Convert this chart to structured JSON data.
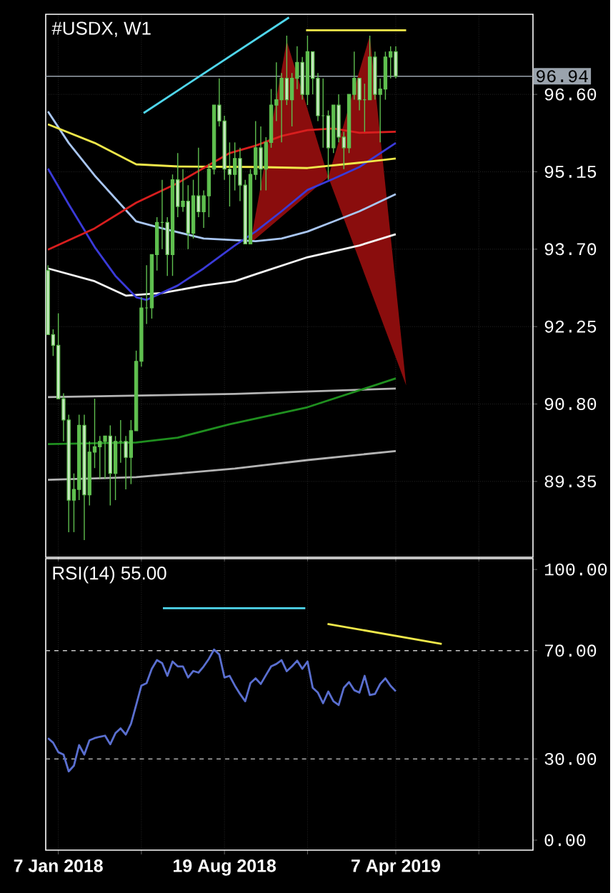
{
  "chart_data": [
    {
      "type": "candlestick",
      "title": "#USDX, W1",
      "color": "#5fbf4f",
      "x": [
        "2017-12-24",
        "2017-12-31",
        "2018-01-07",
        "2018-01-14",
        "2018-01-21",
        "2018-01-28",
        "2018-02-04",
        "2018-02-11",
        "2018-02-18",
        "2018-02-25",
        "2018-03-04",
        "2018-03-11",
        "2018-03-18",
        "2018-03-25",
        "2018-04-01",
        "2018-04-08",
        "2018-04-15",
        "2018-04-22",
        "2018-04-29",
        "2018-05-06",
        "2018-05-13",
        "2018-05-20",
        "2018-05-27",
        "2018-06-03",
        "2018-06-10",
        "2018-06-17",
        "2018-06-24",
        "2018-07-01",
        "2018-07-08",
        "2018-07-15",
        "2018-07-22",
        "2018-07-29",
        "2018-08-05",
        "2018-08-12",
        "2018-08-19",
        "2018-08-26",
        "2018-09-02",
        "2018-09-09",
        "2018-09-16",
        "2018-09-23",
        "2018-09-30",
        "2018-10-07",
        "2018-10-14",
        "2018-10-21",
        "2018-10-28",
        "2018-11-04",
        "2018-11-11",
        "2018-11-18",
        "2018-11-25",
        "2018-12-02",
        "2018-12-09",
        "2018-12-16",
        "2018-12-23",
        "2018-12-30",
        "2019-01-06",
        "2019-01-13",
        "2019-01-20",
        "2019-01-27",
        "2019-02-03",
        "2019-02-10",
        "2019-02-17",
        "2019-02-24",
        "2019-03-03",
        "2019-03-10",
        "2019-03-17",
        "2019-03-24",
        "2019-03-31",
        "2019-04-07"
      ],
      "ohlc": [
        [
          93.3,
          93.4,
          92.1,
          92.1
        ],
        [
          92.1,
          92.2,
          91.7,
          91.9
        ],
        [
          91.9,
          92.5,
          90.9,
          90.9
        ],
        [
          90.9,
          91.0,
          90.1,
          90.5
        ],
        [
          90.5,
          90.6,
          88.4,
          89.0
        ],
        [
          89.0,
          89.5,
          88.4,
          89.2
        ],
        [
          89.2,
          90.6,
          89.0,
          90.4
        ],
        [
          90.4,
          90.6,
          88.25,
          89.1
        ],
        [
          89.1,
          90.1,
          88.9,
          89.9
        ],
        [
          89.9,
          90.9,
          89.6,
          90.0
        ],
        [
          90.0,
          90.2,
          89.4,
          90.1
        ],
        [
          90.1,
          90.2,
          89.4,
          90.2
        ],
        [
          90.2,
          90.4,
          88.9,
          89.5
        ],
        [
          89.5,
          90.2,
          89.0,
          90.1
        ],
        [
          90.1,
          90.5,
          89.7,
          90.1
        ],
        [
          90.1,
          90.2,
          89.2,
          89.8
        ],
        [
          89.8,
          90.5,
          89.3,
          90.3
        ],
        [
          90.3,
          91.8,
          90.3,
          91.6
        ],
        [
          91.6,
          92.8,
          91.5,
          92.6
        ],
        [
          92.6,
          93.4,
          92.3,
          92.6
        ],
        [
          92.6,
          93.6,
          92.4,
          93.6
        ],
        [
          93.6,
          94.3,
          93.3,
          94.2
        ],
        [
          94.2,
          95.0,
          93.7,
          94.2
        ],
        [
          94.2,
          94.3,
          93.2,
          93.6
        ],
        [
          93.6,
          95.1,
          93.2,
          95.0
        ],
        [
          95.0,
          95.5,
          94.3,
          94.5
        ],
        [
          94.5,
          95.2,
          94.4,
          94.6
        ],
        [
          94.6,
          94.9,
          93.7,
          94.0
        ],
        [
          94.0,
          95.0,
          93.9,
          94.7
        ],
        [
          94.7,
          95.6,
          94.3,
          94.4
        ],
        [
          94.4,
          94.8,
          94.1,
          94.7
        ],
        [
          94.7,
          95.3,
          94.3,
          95.2
        ],
        [
          95.2,
          96.4,
          95.1,
          96.4
        ],
        [
          96.4,
          96.9,
          96.0,
          96.1
        ],
        [
          96.1,
          96.2,
          95.0,
          95.2
        ],
        [
          95.2,
          95.7,
          94.5,
          95.1
        ],
        [
          95.1,
          95.7,
          94.8,
          95.4
        ],
        [
          95.4,
          95.6,
          94.6,
          94.9
        ],
        [
          94.9,
          95.0,
          93.8,
          93.8
        ],
        [
          93.8,
          95.2,
          93.8,
          95.1
        ],
        [
          95.1,
          96.1,
          95.0,
          95.6
        ],
        [
          95.6,
          96.0,
          94.8,
          95.2
        ],
        [
          95.2,
          95.8,
          94.8,
          95.7
        ],
        [
          95.7,
          96.7,
          95.6,
          96.4
        ],
        [
          96.4,
          97.2,
          96.1,
          96.5
        ],
        [
          96.5,
          97.0,
          95.7,
          96.9
        ],
        [
          96.9,
          97.7,
          96.4,
          96.5
        ],
        [
          96.5,
          97.0,
          96.0,
          96.9
        ],
        [
          96.9,
          97.5,
          96.7,
          97.2
        ],
        [
          97.2,
          97.3,
          96.5,
          96.6
        ],
        [
          96.6,
          97.7,
          96.4,
          97.4
        ],
        [
          97.4,
          97.4,
          96.6,
          96.9
        ],
        [
          96.9,
          97.0,
          96.1,
          96.2
        ],
        [
          96.2,
          96.9,
          95.6,
          96.2
        ],
        [
          96.2,
          96.3,
          95.0,
          95.6
        ],
        [
          95.6,
          96.4,
          95.5,
          96.4
        ],
        [
          96.4,
          96.6,
          95.7,
          95.8
        ],
        [
          95.8,
          95.9,
          95.2,
          95.6
        ],
        [
          95.6,
          96.6,
          95.5,
          96.6
        ],
        [
          96.6,
          97.4,
          96.5,
          96.9
        ],
        [
          96.9,
          96.9,
          96.3,
          96.5
        ],
        [
          96.5,
          96.8,
          95.9,
          96.5
        ],
        [
          96.5,
          97.7,
          96.5,
          97.3
        ],
        [
          97.3,
          97.4,
          96.5,
          96.6
        ],
        [
          96.6,
          96.9,
          95.7,
          96.7
        ],
        [
          96.7,
          97.4,
          96.5,
          97.3
        ],
        [
          97.3,
          97.5,
          96.9,
          97.4
        ],
        [
          97.4,
          97.5,
          96.9,
          96.94
        ]
      ],
      "series": [
        {
          "type": "area",
          "color": "#8a0d0d",
          "x": [
            "2018-09-23",
            "2018-11-11",
            "2019-01-06",
            "2018-09-23"
          ],
          "values": [
            93.81,
            97.6,
            95.05,
            93.81
          ]
        },
        {
          "type": "area",
          "color": "#8a0d0d",
          "x": [
            "2019-01-06",
            "2019-03-03",
            "2019-04-21",
            "2019-01-06"
          ],
          "values": [
            95.05,
            97.7,
            91.15,
            95.05
          ]
        },
        {
          "type": "line",
          "color": "#b4b4b4",
          "x": [
            "2017-12-24",
            "2018-09-02",
            "2019-04-07"
          ],
          "values": [
            90.93,
            90.99,
            91.09
          ]
        },
        {
          "type": "line",
          "color": "#b4b4b4",
          "x": [
            "2017-12-24",
            "2018-04-22",
            "2018-09-02",
            "2018-12-09",
            "2019-04-07"
          ],
          "values": [
            89.38,
            89.43,
            89.59,
            89.75,
            89.92
          ]
        },
        {
          "type": "line",
          "color": "#1f8f1f",
          "x": [
            "2017-12-24",
            "2018-04-22",
            "2018-06-17",
            "2018-08-26",
            "2018-12-09",
            "2019-04-07"
          ],
          "values": [
            90.05,
            90.08,
            90.17,
            90.42,
            90.74,
            91.28
          ]
        },
        {
          "type": "line",
          "color": "#f5f5f5",
          "x": [
            "2017-12-24",
            "2018-02-25",
            "2018-04-08",
            "2018-05-27",
            "2018-07-22",
            "2018-09-02",
            "2018-09-30",
            "2018-12-09",
            "2019-02-17",
            "2019-04-07"
          ],
          "values": [
            93.34,
            93.1,
            92.83,
            92.88,
            93.02,
            93.1,
            93.23,
            93.55,
            93.77,
            93.98
          ]
        },
        {
          "type": "line",
          "color": "#a9c6f2",
          "x": [
            "2017-12-24",
            "2018-01-21",
            "2018-02-25",
            "2018-04-01",
            "2018-04-22",
            "2018-05-27",
            "2018-07-22",
            "2018-09-02",
            "2018-09-30",
            "2018-11-04",
            "2018-12-09",
            "2019-01-13",
            "2019-02-17",
            "2019-04-07"
          ],
          "values": [
            96.28,
            95.69,
            95.08,
            94.54,
            94.22,
            94.09,
            93.9,
            93.87,
            93.85,
            93.9,
            94.03,
            94.22,
            94.41,
            94.73
          ]
        },
        {
          "type": "line",
          "color": "#3a3ad8",
          "x": [
            "2017-12-24",
            "2018-01-21",
            "2018-02-25",
            "2018-03-25",
            "2018-04-22",
            "2018-05-06",
            "2018-06-17",
            "2018-07-22",
            "2018-09-02",
            "2018-09-30",
            "2018-11-04",
            "2018-12-09",
            "2019-01-13",
            "2019-02-17",
            "2019-04-07"
          ],
          "values": [
            95.21,
            94.54,
            93.74,
            93.2,
            92.8,
            92.75,
            93.02,
            93.34,
            93.77,
            94.03,
            94.41,
            94.81,
            95.02,
            95.24,
            95.69
          ]
        },
        {
          "type": "line",
          "color": "#f0e84a",
          "x": [
            "2017-12-24",
            "2018-02-25",
            "2018-04-22",
            "2018-06-17",
            "2018-09-30",
            "2018-12-09",
            "2019-02-17",
            "2019-04-07"
          ],
          "values": [
            96.04,
            95.69,
            95.29,
            95.25,
            95.24,
            95.22,
            95.32,
            95.4
          ]
        },
        {
          "type": "line",
          "color": "#d81e1e",
          "x": [
            "2017-12-24",
            "2018-02-25",
            "2018-04-22",
            "2018-06-17",
            "2018-08-26",
            "2018-09-30",
            "2018-11-04",
            "2018-12-09",
            "2019-01-13",
            "2019-02-17",
            "2019-04-07"
          ],
          "values": [
            93.69,
            94.09,
            94.57,
            94.94,
            95.5,
            95.64,
            95.82,
            95.93,
            95.96,
            95.88,
            95.9
          ]
        },
        {
          "type": "line",
          "color": "#4fd6ec",
          "x": [
            "2018-05-02",
            "2018-11-14"
          ],
          "values": [
            96.25,
            98.04
          ]
        },
        {
          "type": "line",
          "color": "#f0e84a",
          "x": [
            "2018-12-07",
            "2019-04-21"
          ],
          "values": [
            97.8,
            97.8
          ]
        }
      ],
      "xlim": [
        "2017-12-21",
        "2019-10-09"
      ],
      "ylim": [
        87.93,
        98.1
      ],
      "xticks": [
        {
          "value": "2018-01-07",
          "label": null
        },
        {
          "value": "2018-04-29",
          "label": null
        },
        {
          "value": "2018-08-19",
          "label": null
        },
        {
          "value": "2018-12-09",
          "label": null
        },
        {
          "value": "2019-04-07",
          "label": null
        },
        {
          "value": "2019-07-28",
          "label": null
        }
      ],
      "yticks": [
        {
          "value": 89.35,
          "label": "89.35"
        },
        {
          "value": 90.8,
          "label": "90.80"
        },
        {
          "value": 92.25,
          "label": "92.25"
        },
        {
          "value": 93.7,
          "label": "93.70"
        },
        {
          "value": 95.15,
          "label": "95.15"
        },
        {
          "value": 96.6,
          "label": "96.60"
        }
      ],
      "tick_labels": "y",
      "grid": true,
      "ref_lines": [
        {
          "axis": "y",
          "value": 96.94,
          "label": "96.94",
          "color": "#9aa3ad"
        }
      ]
    },
    {
      "type": "line",
      "title": "RSI(14) 55.00",
      "series": [
        {
          "color": "#5a6fd0",
          "x": [
            "2017-12-24",
            "2017-12-31",
            "2018-01-07",
            "2018-01-14",
            "2018-01-21",
            "2018-01-28",
            "2018-02-04",
            "2018-02-11",
            "2018-02-18",
            "2018-02-25",
            "2018-03-04",
            "2018-03-11",
            "2018-03-18",
            "2018-03-25",
            "2018-04-01",
            "2018-04-08",
            "2018-04-15",
            "2018-04-22",
            "2018-04-29",
            "2018-05-06",
            "2018-05-13",
            "2018-05-20",
            "2018-05-27",
            "2018-06-03",
            "2018-06-10",
            "2018-06-17",
            "2018-06-24",
            "2018-07-01",
            "2018-07-08",
            "2018-07-15",
            "2018-07-22",
            "2018-07-29",
            "2018-08-05",
            "2018-08-12",
            "2018-08-19",
            "2018-08-26",
            "2018-09-02",
            "2018-09-09",
            "2018-09-16",
            "2018-09-23",
            "2018-09-30",
            "2018-10-07",
            "2018-10-14",
            "2018-10-21",
            "2018-10-28",
            "2018-11-04",
            "2018-11-11",
            "2018-11-18",
            "2018-11-25",
            "2018-12-02",
            "2018-12-09",
            "2018-12-16",
            "2018-12-23",
            "2018-12-30",
            "2019-01-06",
            "2019-01-13",
            "2019-01-20",
            "2019-01-27",
            "2019-02-03",
            "2019-02-10",
            "2019-02-17",
            "2019-02-24",
            "2019-03-03",
            "2019-03-10",
            "2019-03-17",
            "2019-03-24",
            "2019-03-31",
            "2019-04-07"
          ],
          "values": [
            37.7,
            36.0,
            32.5,
            31.6,
            25.4,
            27.5,
            35.1,
            31.6,
            36.9,
            37.7,
            38.2,
            38.6,
            35.4,
            39.5,
            41.3,
            39.0,
            43.0,
            50.0,
            57.1,
            58.0,
            63.3,
            66.5,
            65.4,
            60.7,
            66.0,
            64.2,
            64.2,
            60.1,
            62.5,
            61.9,
            64.2,
            67.0,
            70.4,
            68.6,
            60.1,
            60.7,
            57.1,
            54.0,
            51.3,
            58.0,
            59.8,
            57.7,
            61.0,
            64.2,
            65.1,
            66.5,
            62.4,
            64.2,
            66.3,
            63.3,
            66.0,
            56.3,
            54.5,
            50.6,
            54.9,
            51.3,
            49.9,
            56.3,
            58.4,
            55.4,
            54.5,
            60.7,
            53.6,
            54.0,
            57.7,
            59.8,
            57.0,
            55.0
          ]
        },
        {
          "color": "#4fd6ec",
          "x": [
            "2018-05-28",
            "2018-12-06"
          ],
          "values": [
            85.7,
            85.7
          ]
        },
        {
          "color": "#f0e84a",
          "x": [
            "2019-01-05",
            "2019-06-08"
          ],
          "values": [
            79.9,
            72.5
          ]
        }
      ],
      "xlim": [
        "2017-12-21",
        "2019-10-09"
      ],
      "ylim": [
        -3.7,
        104
      ],
      "xticks": [
        {
          "value": "2018-01-07",
          "label": "7 Jan 2018"
        },
        {
          "value": "2018-04-29",
          "label": null
        },
        {
          "value": "2018-08-19",
          "label": "19 Aug 2018"
        },
        {
          "value": "2018-12-09",
          "label": null
        },
        {
          "value": "2019-04-07",
          "label": "7 Apr 2019"
        },
        {
          "value": "2019-07-28",
          "label": null
        }
      ],
      "yticks": [
        {
          "value": 0,
          "label": "0.00"
        },
        {
          "value": 30,
          "label": "30.00"
        },
        {
          "value": 70,
          "label": "70.00"
        },
        {
          "value": 100,
          "label": "100.00"
        }
      ],
      "grid": "x",
      "ref_lines": [
        {
          "axis": "y",
          "value": 30,
          "color": "#c8c8c8",
          "line_style": "dashed"
        },
        {
          "axis": "y",
          "value": 70,
          "color": "#c8c8c8",
          "line_style": "dashed"
        }
      ]
    }
  ]
}
